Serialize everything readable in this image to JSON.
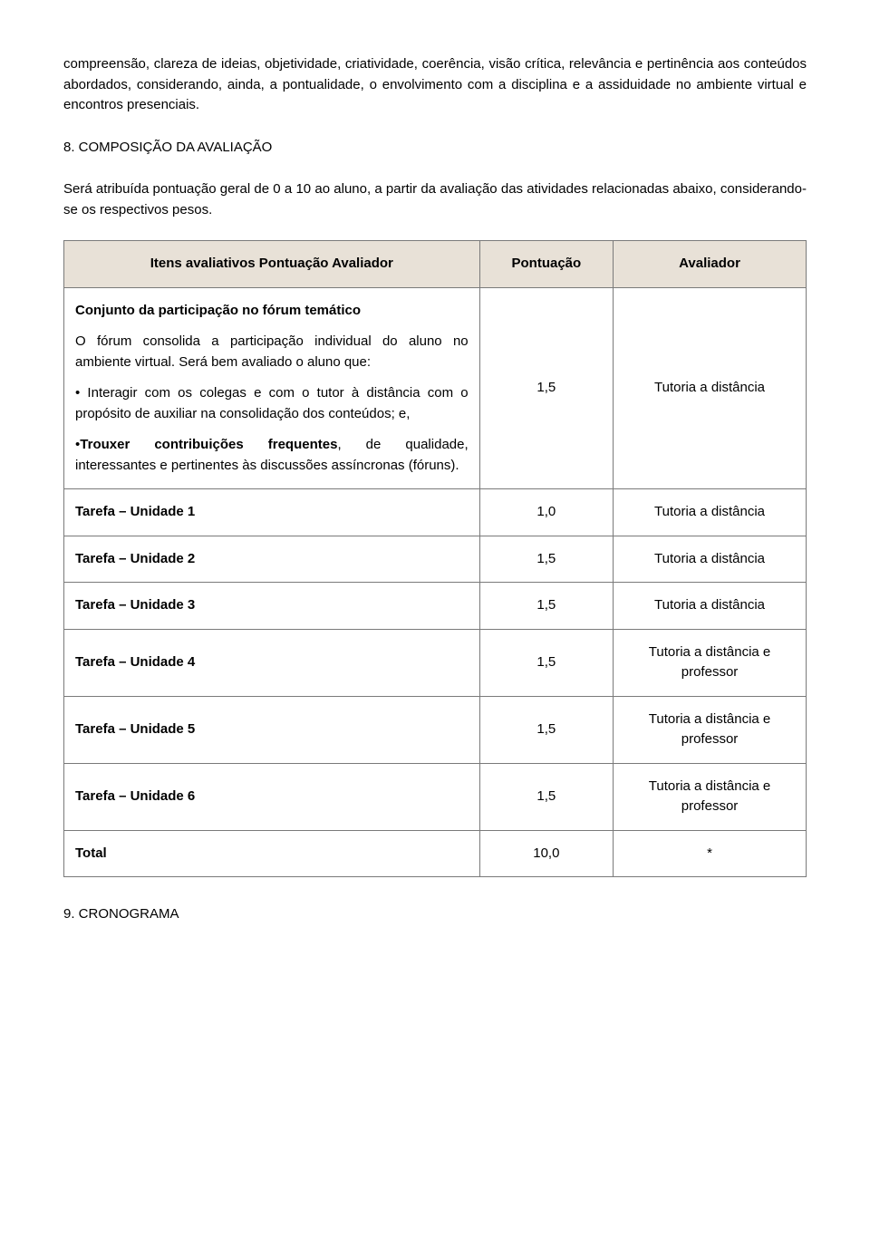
{
  "intro_paragraphs": [
    "compreensão, clareza de ideias, objetividade, criatividade, coerência, visão crítica, relevância e pertinência aos conteúdos abordados, considerando, ainda, a pontualidade, o envolvimento com a disciplina e a assiduidade no ambiente virtual e encontros presenciais."
  ],
  "section8": {
    "heading": "8. COMPOSIÇÃO DA AVALIAÇÃO",
    "paragraph": "Será atribuída pontuação geral de 0 a 10 ao aluno, a partir da avaliação das atividades relacionadas abaixo, considerando-se os respectivos pesos."
  },
  "table": {
    "header_bg": "#e8e1d7",
    "border_color": "#7a7a7a",
    "headers": [
      "Itens avaliativos Pontuação Avaliador",
      "Pontuação",
      "Avaliador"
    ],
    "rows": [
      {
        "desc_html": "<p><b>Conjunto da participação no fórum temático</b></p><p>O fórum consolida a participação individual do aluno no ambiente virtual. Será bem avaliado o aluno que:</p><p>• Interagir com os colegas e com o tutor à distância com o propósito de auxiliar na consolidação dos conteúdos; e,</p><p>•<b>Trouxer contribuições frequentes</b>, de qualidade, interessantes e pertinentes às discussões assíncronas (fóruns).</p>",
        "score": "1,5",
        "evaluator": "Tutoria a distância"
      },
      {
        "desc_html": "<b>Tarefa – Unidade 1</b>",
        "score": "1,0",
        "evaluator": "Tutoria a distância"
      },
      {
        "desc_html": "<b>Tarefa – Unidade 2</b>",
        "score": "1,5",
        "evaluator": "Tutoria a distância"
      },
      {
        "desc_html": "<b>Tarefa – Unidade 3</b>",
        "score": "1,5",
        "evaluator": "Tutoria a distância"
      },
      {
        "desc_html": "<b>Tarefa – Unidade 4</b>",
        "score": "1,5",
        "evaluator": "Tutoria a distância e professor"
      },
      {
        "desc_html": "<b>Tarefa – Unidade 5</b>",
        "score": "1,5",
        "evaluator": "Tutoria a distância e professor"
      },
      {
        "desc_html": "<b>Tarefa – Unidade 6</b>",
        "score": "1,5",
        "evaluator": "Tutoria a distância e professor"
      },
      {
        "desc_html": "<b>Total</b>",
        "score": "10,0",
        "evaluator": "*"
      }
    ]
  },
  "section9": {
    "heading": "9. CRONOGRAMA"
  }
}
